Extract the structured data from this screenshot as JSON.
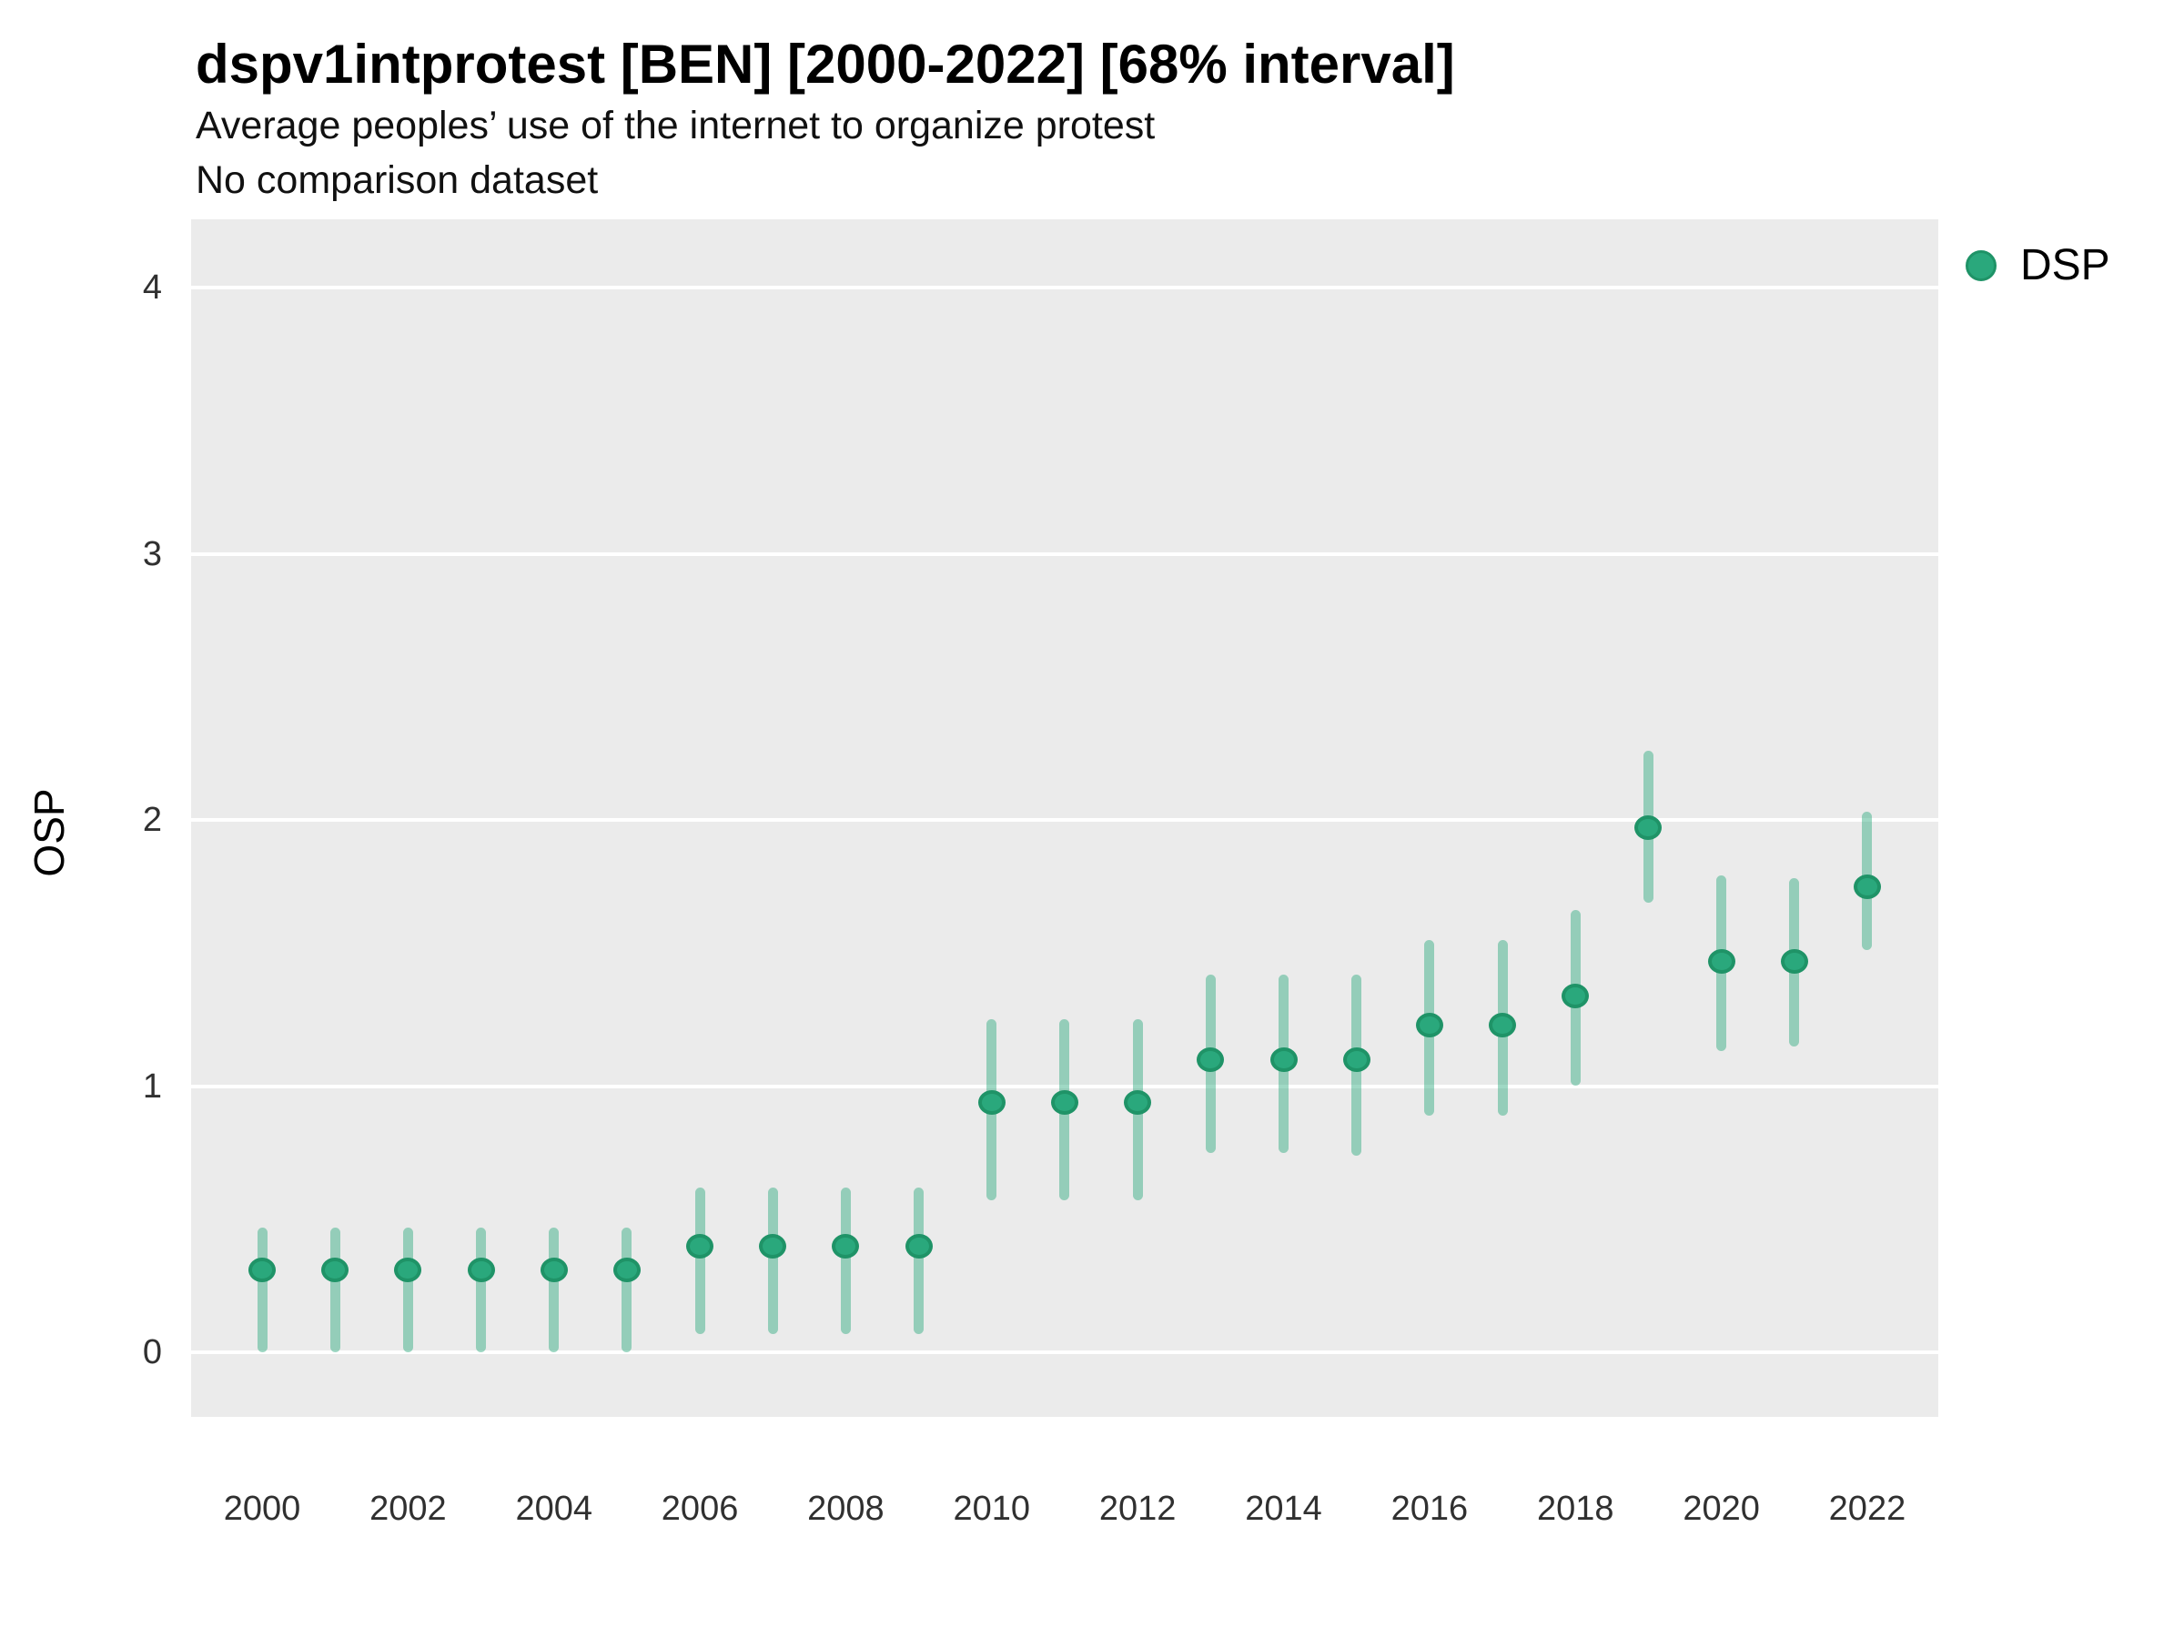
{
  "title": "dspv1intprotest [BEN] [2000-2022] [68% interval]",
  "subtitle_line1": "Average peoples’ use of the internet to organize protest",
  "subtitle_line2": "No comparison dataset",
  "y_axis_label": "OSP",
  "legend": {
    "series_label": "DSP",
    "marker": "circle-icon"
  },
  "colors": {
    "point_fill": "#2aa87c",
    "point_stroke": "#1f9367",
    "interval_bar": "rgba(42,168,124,0.45)",
    "panel_background": "#ebebeb",
    "gridline": "#ffffff",
    "tick_text": "#303030",
    "title_text": "#000000"
  },
  "chart_data": {
    "type": "scatter",
    "title": "dspv1intprotest [BEN] [2000-2022] [68% interval]",
    "subtitle": [
      "Average peoples’ use of the internet to organize protest",
      "No comparison dataset"
    ],
    "xlabel": "",
    "ylabel": "OSP",
    "interval": "68%",
    "grid": "white major horizontal gridlines on gray panel",
    "legend_position": "right-top",
    "ylim": [
      0,
      4
    ],
    "yticks": [
      0,
      1,
      2,
      3,
      4
    ],
    "xticks": [
      2000,
      2002,
      2004,
      2006,
      2008,
      2010,
      2012,
      2014,
      2016,
      2018,
      2020,
      2022
    ],
    "x": [
      2000,
      2001,
      2002,
      2003,
      2004,
      2005,
      2006,
      2007,
      2008,
      2009,
      2010,
      2011,
      2012,
      2013,
      2014,
      2015,
      2016,
      2017,
      2018,
      2019,
      2020,
      2021,
      2022
    ],
    "series": [
      {
        "name": "DSP",
        "values": [
          0.31,
          0.31,
          0.31,
          0.31,
          0.31,
          0.31,
          0.4,
          0.4,
          0.4,
          0.4,
          0.94,
          0.94,
          0.94,
          1.1,
          1.1,
          1.1,
          1.23,
          1.23,
          1.34,
          1.97,
          1.47,
          1.47,
          1.75
        ],
        "lower_68": [
          0.0,
          0.0,
          0.0,
          0.0,
          0.0,
          0.0,
          0.07,
          0.07,
          0.07,
          0.07,
          0.57,
          0.57,
          0.57,
          0.75,
          0.75,
          0.74,
          0.89,
          0.89,
          1.0,
          1.69,
          1.13,
          1.15,
          1.51
        ],
        "upper_68": [
          0.47,
          0.47,
          0.47,
          0.47,
          0.47,
          0.47,
          0.62,
          0.62,
          0.62,
          0.62,
          1.25,
          1.25,
          1.25,
          1.42,
          1.42,
          1.42,
          1.55,
          1.55,
          1.66,
          2.26,
          1.79,
          1.78,
          2.03
        ]
      }
    ]
  }
}
